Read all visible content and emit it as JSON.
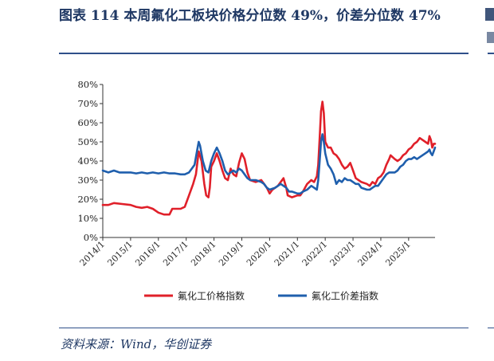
{
  "title": "图表 114 本周氟化工板块价格分位数 49%，价差分位数 47%",
  "source": "资料来源：Wind，华创证券",
  "colors": {
    "price": "#e0202a",
    "spread": "#1f5fad",
    "axis": "#333333"
  },
  "chart_data": {
    "type": "line",
    "ylim": [
      0,
      80
    ],
    "y_ticks": [
      "0%",
      "10%",
      "20%",
      "30%",
      "40%",
      "50%",
      "60%",
      "70%",
      "80%"
    ],
    "x_range": [
      2014.0,
      2025.95
    ],
    "x_ticks": [
      "2014/1",
      "2015/1",
      "2016/1",
      "2017/1",
      "2018/1",
      "2019/1",
      "2020/1",
      "2021/1",
      "2022/1",
      "2023/1",
      "2024/1",
      "2025/1"
    ],
    "legend_position": "bottom",
    "grid": false,
    "series": [
      {
        "name": "氟化工价格指数",
        "color": "#e0202a",
        "points": [
          [
            2014.0,
            17
          ],
          [
            2014.2,
            17
          ],
          [
            2014.4,
            18
          ],
          [
            2014.7,
            17.5
          ],
          [
            2015.0,
            17
          ],
          [
            2015.2,
            16
          ],
          [
            2015.4,
            15.5
          ],
          [
            2015.6,
            16
          ],
          [
            2015.8,
            15
          ],
          [
            2016.0,
            13
          ],
          [
            2016.2,
            12
          ],
          [
            2016.4,
            12
          ],
          [
            2016.5,
            15
          ],
          [
            2016.8,
            15
          ],
          [
            2016.95,
            16
          ],
          [
            2017.1,
            22
          ],
          [
            2017.25,
            28
          ],
          [
            2017.35,
            33
          ],
          [
            2017.45,
            45
          ],
          [
            2017.55,
            40
          ],
          [
            2017.65,
            28
          ],
          [
            2017.72,
            22
          ],
          [
            2017.8,
            21
          ],
          [
            2017.85,
            26
          ],
          [
            2017.9,
            37
          ],
          [
            2018.0,
            40
          ],
          [
            2018.1,
            44
          ],
          [
            2018.2,
            40
          ],
          [
            2018.3,
            35
          ],
          [
            2018.4,
            31
          ],
          [
            2018.5,
            30
          ],
          [
            2018.6,
            36
          ],
          [
            2018.7,
            33
          ],
          [
            2018.8,
            32
          ],
          [
            2018.9,
            39
          ],
          [
            2019.0,
            44
          ],
          [
            2019.1,
            41
          ],
          [
            2019.2,
            34
          ],
          [
            2019.3,
            30
          ],
          [
            2019.5,
            29
          ],
          [
            2019.7,
            30
          ],
          [
            2019.8,
            28
          ],
          [
            2019.9,
            26
          ],
          [
            2020.0,
            23
          ],
          [
            2020.1,
            25
          ],
          [
            2020.3,
            27
          ],
          [
            2020.5,
            31
          ],
          [
            2020.6,
            26
          ],
          [
            2020.65,
            22
          ],
          [
            2020.8,
            21
          ],
          [
            2021.0,
            22
          ],
          [
            2021.1,
            22
          ],
          [
            2021.2,
            24
          ],
          [
            2021.35,
            28
          ],
          [
            2021.5,
            30
          ],
          [
            2021.6,
            29
          ],
          [
            2021.7,
            32
          ],
          [
            2021.75,
            38
          ],
          [
            2021.8,
            52
          ],
          [
            2021.85,
            66
          ],
          [
            2021.9,
            71
          ],
          [
            2021.95,
            65
          ],
          [
            2022.0,
            50
          ],
          [
            2022.1,
            47
          ],
          [
            2022.2,
            47
          ],
          [
            2022.3,
            44
          ],
          [
            2022.4,
            43
          ],
          [
            2022.5,
            41
          ],
          [
            2022.6,
            38
          ],
          [
            2022.7,
            36
          ],
          [
            2022.8,
            37
          ],
          [
            2022.9,
            39
          ],
          [
            2023.0,
            35
          ],
          [
            2023.1,
            31
          ],
          [
            2023.2,
            30
          ],
          [
            2023.3,
            29
          ],
          [
            2023.5,
            28
          ],
          [
            2023.6,
            27
          ],
          [
            2023.7,
            29
          ],
          [
            2023.8,
            28
          ],
          [
            2023.9,
            31
          ],
          [
            2024.0,
            32
          ],
          [
            2024.1,
            34
          ],
          [
            2024.2,
            38
          ],
          [
            2024.3,
            41
          ],
          [
            2024.35,
            43
          ],
          [
            2024.5,
            41
          ],
          [
            2024.6,
            40
          ],
          [
            2024.7,
            41
          ],
          [
            2024.8,
            43
          ],
          [
            2024.9,
            44
          ],
          [
            2025.0,
            46
          ],
          [
            2025.1,
            47
          ],
          [
            2025.2,
            49
          ],
          [
            2025.3,
            50
          ],
          [
            2025.4,
            52
          ],
          [
            2025.5,
            51
          ],
          [
            2025.6,
            50
          ],
          [
            2025.7,
            49
          ],
          [
            2025.75,
            53
          ],
          [
            2025.8,
            51
          ],
          [
            2025.85,
            47
          ],
          [
            2025.9,
            49
          ],
          [
            2025.95,
            49
          ]
        ]
      },
      {
        "name": "氟化工价差指数",
        "color": "#1f5fad",
        "points": [
          [
            2014.0,
            35
          ],
          [
            2014.2,
            34
          ],
          [
            2014.4,
            35
          ],
          [
            2014.6,
            34
          ],
          [
            2014.8,
            34
          ],
          [
            2015.0,
            34
          ],
          [
            2015.2,
            33.5
          ],
          [
            2015.4,
            34
          ],
          [
            2015.6,
            33.5
          ],
          [
            2015.8,
            34
          ],
          [
            2016.0,
            33.5
          ],
          [
            2016.2,
            34
          ],
          [
            2016.4,
            33.5
          ],
          [
            2016.6,
            33.5
          ],
          [
            2016.8,
            33
          ],
          [
            2016.95,
            33
          ],
          [
            2017.1,
            34
          ],
          [
            2017.2,
            36
          ],
          [
            2017.3,
            38
          ],
          [
            2017.4,
            46
          ],
          [
            2017.45,
            50
          ],
          [
            2017.5,
            48
          ],
          [
            2017.6,
            40
          ],
          [
            2017.7,
            35
          ],
          [
            2017.8,
            34
          ],
          [
            2017.9,
            40
          ],
          [
            2018.0,
            44
          ],
          [
            2018.1,
            47
          ],
          [
            2018.2,
            44
          ],
          [
            2018.3,
            40
          ],
          [
            2018.4,
            35
          ],
          [
            2018.5,
            33
          ],
          [
            2018.6,
            34
          ],
          [
            2018.7,
            35
          ],
          [
            2018.8,
            34
          ],
          [
            2018.9,
            36
          ],
          [
            2019.0,
            35
          ],
          [
            2019.1,
            33
          ],
          [
            2019.2,
            31
          ],
          [
            2019.3,
            30
          ],
          [
            2019.5,
            30
          ],
          [
            2019.7,
            29
          ],
          [
            2019.8,
            28
          ],
          [
            2019.9,
            26
          ],
          [
            2020.0,
            25
          ],
          [
            2020.2,
            26
          ],
          [
            2020.4,
            28
          ],
          [
            2020.5,
            27
          ],
          [
            2020.6,
            26
          ],
          [
            2020.7,
            24
          ],
          [
            2020.8,
            24
          ],
          [
            2021.0,
            23
          ],
          [
            2021.1,
            23
          ],
          [
            2021.2,
            24
          ],
          [
            2021.35,
            25
          ],
          [
            2021.5,
            27
          ],
          [
            2021.6,
            26
          ],
          [
            2021.7,
            25
          ],
          [
            2021.75,
            30
          ],
          [
            2021.8,
            40
          ],
          [
            2021.85,
            50
          ],
          [
            2021.9,
            54
          ],
          [
            2021.95,
            50
          ],
          [
            2022.0,
            44
          ],
          [
            2022.1,
            38
          ],
          [
            2022.2,
            36
          ],
          [
            2022.3,
            33
          ],
          [
            2022.4,
            28
          ],
          [
            2022.5,
            30
          ],
          [
            2022.6,
            29
          ],
          [
            2022.7,
            31
          ],
          [
            2022.8,
            30
          ],
          [
            2022.9,
            30
          ],
          [
            2023.0,
            29
          ],
          [
            2023.1,
            28
          ],
          [
            2023.2,
            28
          ],
          [
            2023.3,
            26
          ],
          [
            2023.5,
            25
          ],
          [
            2023.6,
            25
          ],
          [
            2023.7,
            26
          ],
          [
            2023.8,
            27
          ],
          [
            2023.9,
            27
          ],
          [
            2024.0,
            29
          ],
          [
            2024.1,
            31
          ],
          [
            2024.2,
            33
          ],
          [
            2024.3,
            34
          ],
          [
            2024.5,
            34
          ],
          [
            2024.6,
            35
          ],
          [
            2024.7,
            37
          ],
          [
            2024.8,
            38
          ],
          [
            2024.9,
            40
          ],
          [
            2025.0,
            41
          ],
          [
            2025.1,
            41
          ],
          [
            2025.2,
            42
          ],
          [
            2025.3,
            41
          ],
          [
            2025.4,
            42
          ],
          [
            2025.5,
            43
          ],
          [
            2025.6,
            44
          ],
          [
            2025.7,
            45
          ],
          [
            2025.75,
            46
          ],
          [
            2025.8,
            44
          ],
          [
            2025.85,
            43
          ],
          [
            2025.9,
            45
          ],
          [
            2025.95,
            47
          ]
        ]
      }
    ]
  }
}
